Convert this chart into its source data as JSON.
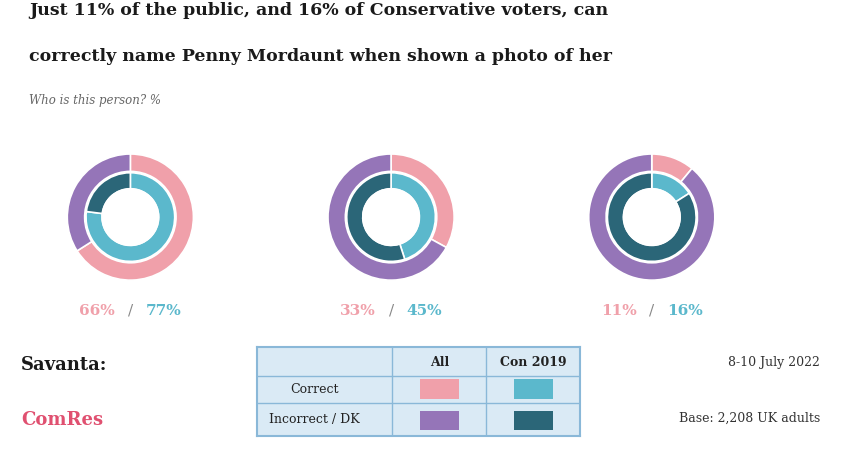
{
  "title_line1": "Just 11% of the public, and 16% of Conservative voters, can",
  "title_line2": "correctly name Penny Mordaunt when shown a photo of her",
  "subtitle": "Who is this person? %",
  "background_color": "#ffffff",
  "title_color": "#1a1a1a",
  "subtitle_color": "#666666",
  "accent_bar_color": "#c8345a",
  "charts": [
    {
      "label_all": "66%",
      "label_con": "77%",
      "correct_all": 66,
      "correct_con": 77,
      "color_correct_all": "#f0a0aa",
      "color_incorrect_all": "#9575b8",
      "color_correct_con": "#5bb8cc",
      "color_incorrect_con": "#2b6678"
    },
    {
      "label_all": "33%",
      "label_con": "45%",
      "correct_all": 33,
      "correct_con": 45,
      "color_correct_all": "#f0a0aa",
      "color_incorrect_all": "#9575b8",
      "color_correct_con": "#5bb8cc",
      "color_incorrect_con": "#2b6678"
    },
    {
      "label_all": "11%",
      "label_con": "16%",
      "correct_all": 11,
      "correct_con": 16,
      "color_correct_all": "#f0a0aa",
      "color_incorrect_all": "#9575b8",
      "color_correct_con": "#5bb8cc",
      "color_incorrect_con": "#2b6678"
    }
  ],
  "legend_bg": "#daeaf5",
  "legend_border": "#8ab8d8",
  "savanta_color": "#1a1a1a",
  "comres_color": "#e05070",
  "date_text": "8-10 July 2022",
  "base_text": "Base: 2,208 UK adults",
  "label_all_color": "#f0a0aa",
  "label_con_color": "#5bb8cc",
  "slash_color": "#888888"
}
